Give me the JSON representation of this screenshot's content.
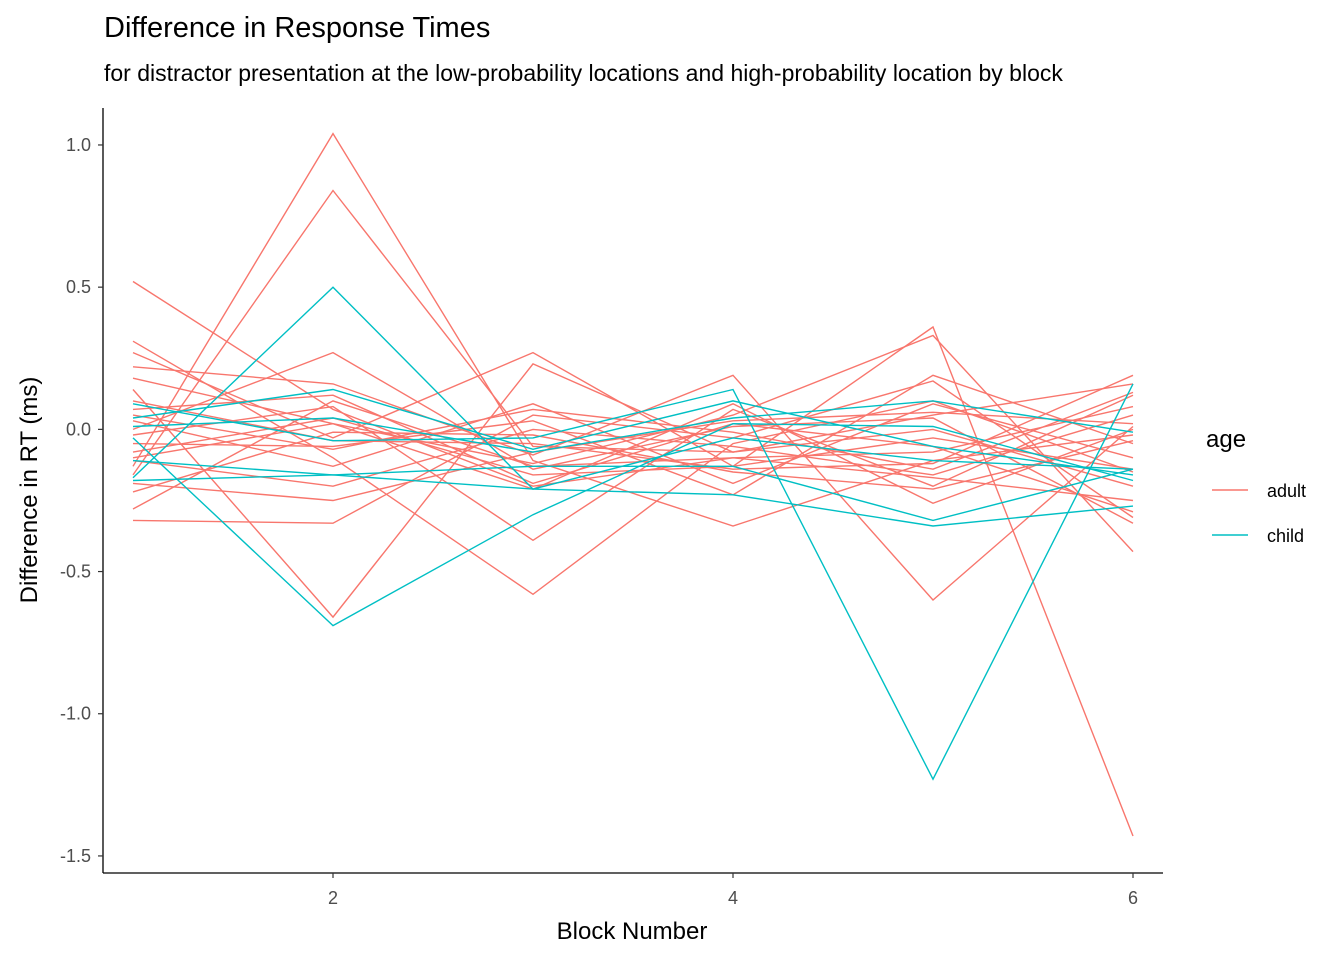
{
  "chart_data": {
    "type": "line",
    "title": "Difference in Response Times",
    "subtitle": "for distractor presentation at the low-probability locations and high-probability location by block",
    "xlabel": "Block Number",
    "ylabel": "Difference in RT (ms)",
    "x": [
      1,
      2,
      3,
      4,
      5,
      6
    ],
    "xlim": [
      0.85,
      6.15
    ],
    "ylim": [
      -1.56,
      1.13
    ],
    "xticks": [
      2,
      4,
      6
    ],
    "yticks": [
      1.0,
      0.5,
      0.0,
      -0.5,
      -1.0,
      -1.5
    ],
    "ytick_labels": [
      "1.0",
      "0.5",
      "0.0",
      "-0.5",
      "-1.0",
      "-1.5"
    ],
    "grid": false,
    "legend": {
      "title": "age",
      "position": "right",
      "items": [
        {
          "label": "adult",
          "color": "#F8766D"
        },
        {
          "label": "child",
          "color": "#00BFC4"
        }
      ]
    },
    "series": [
      {
        "group": "adult",
        "values": [
          0.52,
          0.07,
          -0.2,
          -0.1,
          -0.17,
          -0.25
        ]
      },
      {
        "group": "adult",
        "values": [
          0.31,
          -0.1,
          -0.58,
          -0.05,
          0.1,
          -0.15
        ]
      },
      {
        "group": "adult",
        "values": [
          0.27,
          -0.03,
          0.27,
          -0.13,
          0.36,
          -1.43
        ]
      },
      {
        "group": "adult",
        "values": [
          0.22,
          0.16,
          -0.09,
          0.19,
          -0.6,
          0.01
        ]
      },
      {
        "group": "adult",
        "values": [
          0.18,
          0.02,
          -0.12,
          0.05,
          0.33,
          -0.43
        ]
      },
      {
        "group": "adult",
        "values": [
          0.14,
          -0.66,
          0.23,
          -0.08,
          0.05,
          0.16
        ]
      },
      {
        "group": "adult",
        "values": [
          0.1,
          -0.04,
          -0.05,
          -0.14,
          -0.12,
          0.19
        ]
      },
      {
        "group": "adult",
        "values": [
          0.07,
          0.12,
          -0.19,
          0.02,
          -0.06,
          -0.29
        ]
      },
      {
        "group": "adult",
        "values": [
          0.03,
          -0.13,
          0.09,
          -0.19,
          0.09,
          -0.1
        ]
      },
      {
        "group": "adult",
        "values": [
          0.0,
          0.27,
          -0.14,
          0.01,
          0.04,
          -0.33
        ]
      },
      {
        "group": "adult",
        "values": [
          -0.02,
          0.08,
          -0.39,
          0.07,
          -0.2,
          0.12
        ]
      },
      {
        "group": "adult",
        "values": [
          -0.05,
          -0.06,
          0.03,
          -0.23,
          0.19,
          -0.05
        ]
      },
      {
        "group": "adult",
        "values": [
          -0.08,
          0.04,
          -0.16,
          -0.13,
          -0.03,
          -0.14
        ]
      },
      {
        "group": "adult",
        "values": [
          -0.11,
          -0.2,
          0.0,
          -0.06,
          -0.16,
          0.05
        ]
      },
      {
        "group": "adult",
        "values": [
          -0.13,
          1.04,
          -0.11,
          -0.34,
          -0.11,
          -0.02
        ]
      },
      {
        "group": "adult",
        "values": [
          -0.16,
          0.84,
          -0.06,
          -0.08,
          0.0,
          -0.2
        ]
      },
      {
        "group": "adult",
        "values": [
          -0.19,
          -0.25,
          -0.08,
          0.03,
          0.06,
          0.02
        ]
      },
      {
        "group": "adult",
        "values": [
          -0.22,
          -0.01,
          -0.02,
          -0.15,
          -0.21,
          -0.04
        ]
      },
      {
        "group": "adult",
        "values": [
          -0.28,
          0.1,
          -0.13,
          -0.1,
          -0.08,
          0.08
        ]
      },
      {
        "group": "adult",
        "values": [
          -0.32,
          -0.33,
          0.05,
          -0.03,
          0.17,
          -0.31
        ]
      },
      {
        "group": "adult",
        "values": [
          -0.1,
          0.02,
          -0.21,
          0.09,
          -0.26,
          0.0
        ]
      },
      {
        "group": "adult",
        "values": [
          0.05,
          -0.07,
          0.07,
          -0.01,
          -0.14,
          0.13
        ]
      },
      {
        "group": "child",
        "values": [
          -0.17,
          0.5,
          -0.21,
          -0.03,
          -0.11,
          -0.14
        ]
      },
      {
        "group": "child",
        "values": [
          0.04,
          0.14,
          -0.07,
          0.1,
          -0.06,
          -0.16
        ]
      },
      {
        "group": "child",
        "values": [
          -0.03,
          -0.69,
          -0.3,
          0.02,
          0.01,
          -0.18
        ]
      },
      {
        "group": "child",
        "values": [
          -0.11,
          -0.16,
          -0.21,
          -0.23,
          -0.34,
          -0.27
        ]
      },
      {
        "group": "child",
        "values": [
          0.09,
          -0.04,
          -0.03,
          0.14,
          -1.23,
          0.16
        ]
      },
      {
        "group": "child",
        "values": [
          -0.18,
          -0.16,
          -0.13,
          -0.13,
          -0.32,
          -0.14
        ]
      },
      {
        "group": "child",
        "values": [
          0.01,
          0.04,
          -0.08,
          0.04,
          0.1,
          -0.01
        ]
      }
    ]
  }
}
